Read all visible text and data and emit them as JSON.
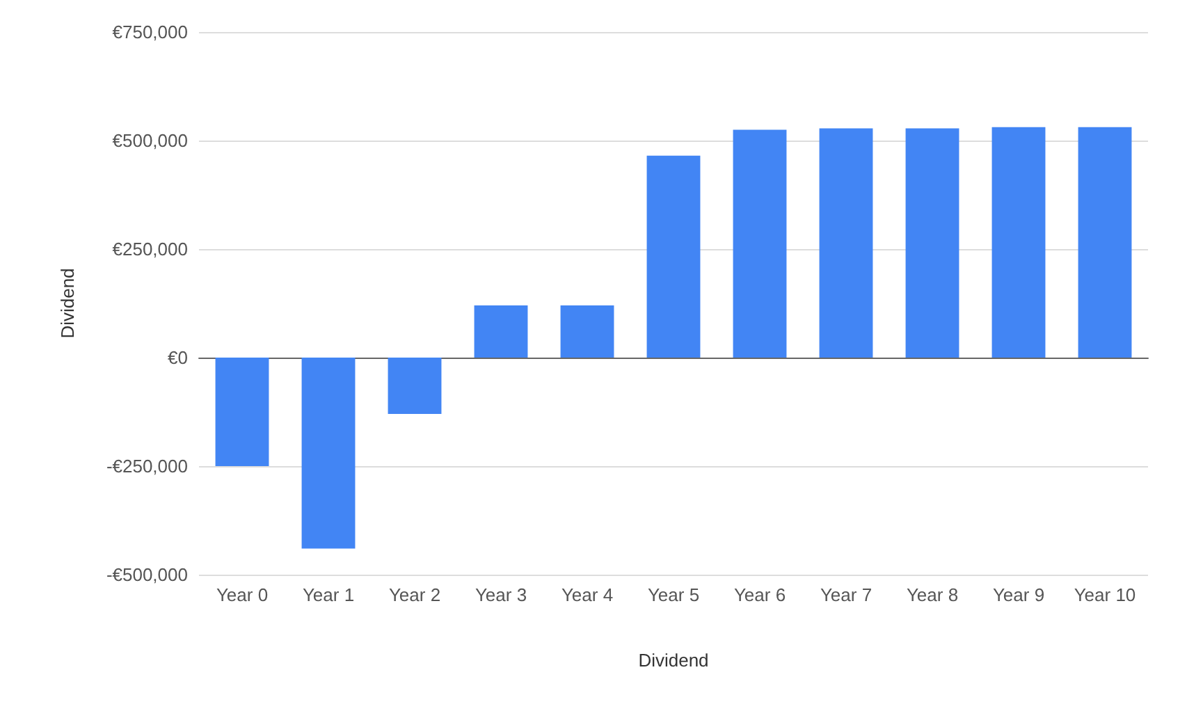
{
  "chart_data": {
    "type": "bar",
    "xlabel": "Dividend",
    "ylabel": "Dividend",
    "categories": [
      "Year 0",
      "Year 1",
      "Year 2",
      "Year 3",
      "Year 4",
      "Year 5",
      "Year 6",
      "Year 7",
      "Year 8",
      "Year 9",
      "Year 10"
    ],
    "values": [
      -250000,
      -440000,
      -130000,
      120000,
      120000,
      465000,
      525000,
      528000,
      528000,
      531000,
      531000
    ],
    "color": "#4285f4",
    "ylim": [
      -500000,
      750000
    ],
    "yticks": [
      {
        "value": -500000,
        "label": "-€500,000"
      },
      {
        "value": -250000,
        "label": "-€250,000"
      },
      {
        "value": 0,
        "label": "€0"
      },
      {
        "value": 250000,
        "label": "€250,000"
      },
      {
        "value": 500000,
        "label": "€500,000"
      },
      {
        "value": 750000,
        "label": "€750,000"
      }
    ],
    "grid": "y"
  }
}
